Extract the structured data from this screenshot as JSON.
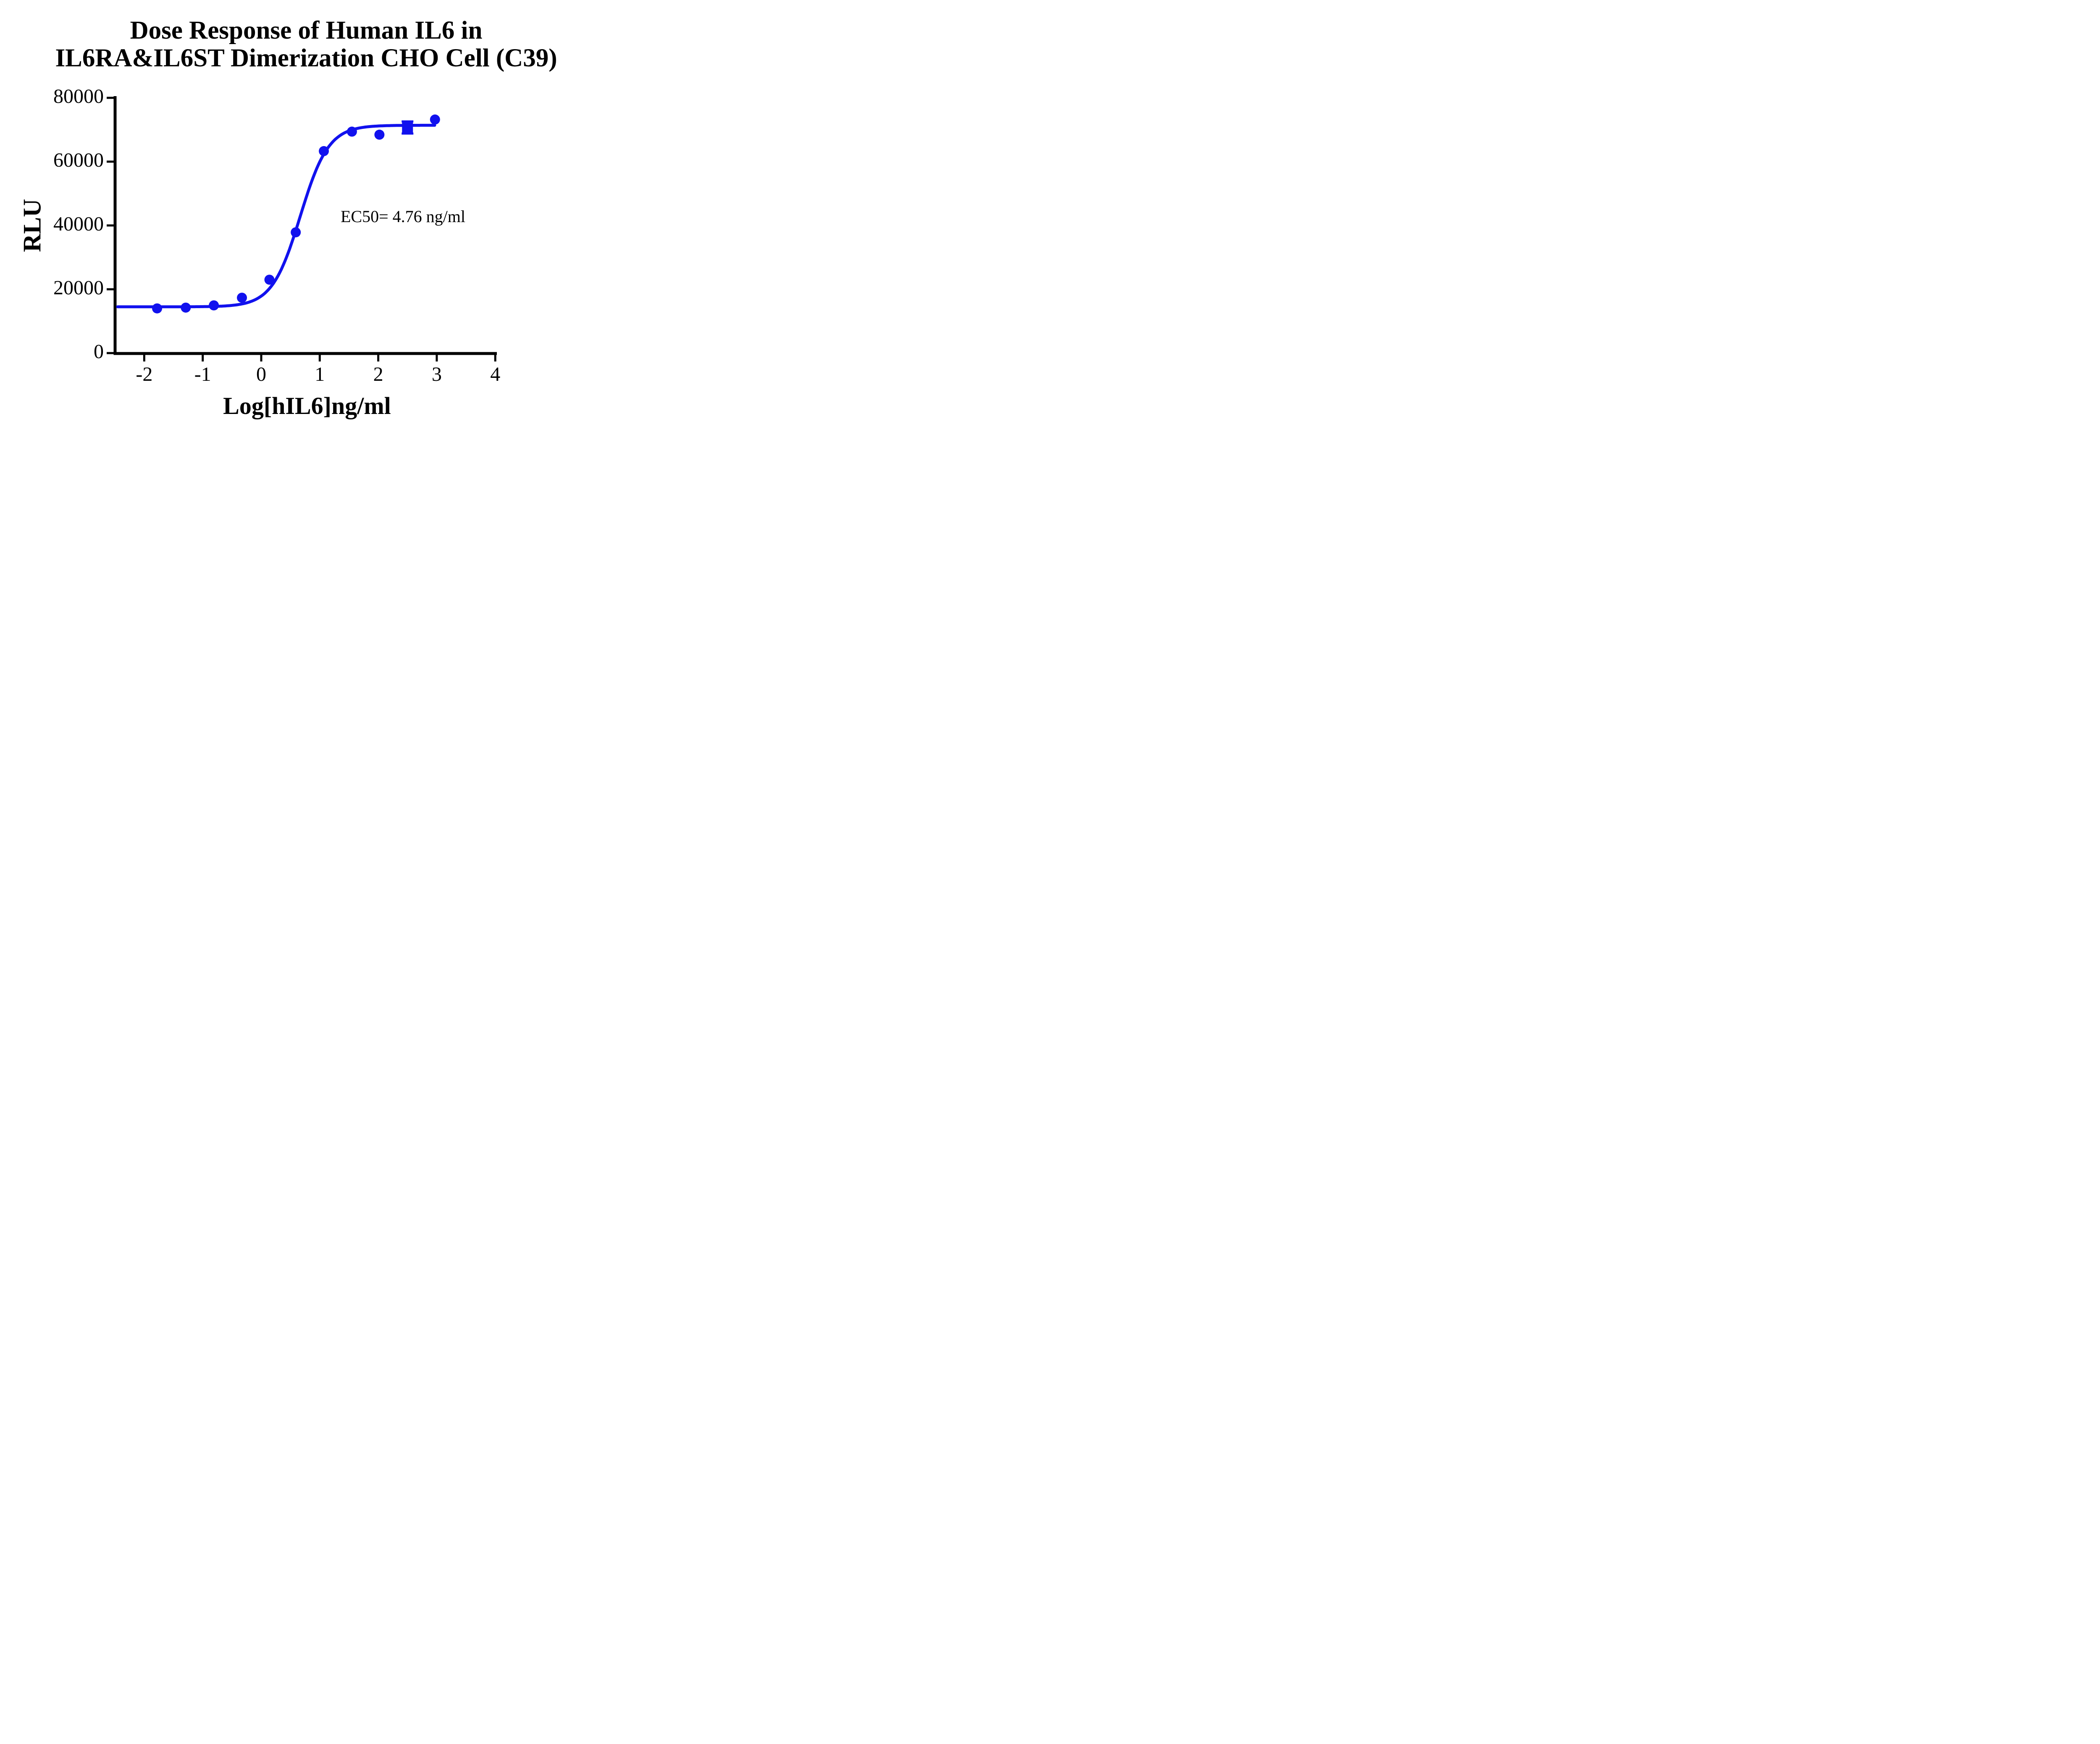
{
  "title": {
    "line1": "Dose Response of Human IL6 in",
    "line2": "IL6RA&IL6ST Dimerization CHO Cell (C39)"
  },
  "annotation": {
    "ec50": "EC50= 4.76 ng/ml"
  },
  "axes": {
    "x": {
      "label": "Log[hIL6]ng/ml",
      "ticks": [
        -2,
        -1,
        0,
        1,
        2,
        3,
        4
      ],
      "range": [
        -2.52,
        4
      ]
    },
    "y": {
      "label": "RLU",
      "ticks": [
        0,
        20000,
        40000,
        60000,
        80000
      ],
      "range": [
        0,
        80000
      ]
    }
  },
  "chart_data": {
    "type": "scatter",
    "series_name": "Human IL6",
    "color": "#1111ee",
    "title": "Dose Response of Human IL6 in IL6RA&IL6ST Dimerization CHO Cell (C39)",
    "xlabel": "Log[hIL6]ng/ml",
    "ylabel": "RLU",
    "xlim": [
      -2.52,
      4
    ],
    "ylim": [
      0,
      80000
    ],
    "grid": false,
    "legend": "none",
    "points": [
      {
        "log_conc": -1.78,
        "rlu": 14000,
        "marker": "circle"
      },
      {
        "log_conc": -1.29,
        "rlu": 14250,
        "marker": "circle"
      },
      {
        "log_conc": -0.81,
        "rlu": 14950,
        "marker": "circle"
      },
      {
        "log_conc": -0.33,
        "rlu": 17350,
        "marker": "circle"
      },
      {
        "log_conc": 0.14,
        "rlu": 23000,
        "marker": "circle"
      },
      {
        "log_conc": 0.59,
        "rlu": 37850,
        "marker": "circle"
      },
      {
        "log_conc": 1.07,
        "rlu": 63300,
        "marker": "circle"
      },
      {
        "log_conc": 1.55,
        "rlu": 69400,
        "marker": "circle"
      },
      {
        "log_conc": 2.02,
        "rlu": 68450,
        "marker": "circle"
      },
      {
        "log_conc": 2.5,
        "rlu": 70700,
        "marker": "square",
        "error_sd": 1900
      },
      {
        "log_conc": 2.97,
        "rlu": 73200,
        "marker": "circle"
      }
    ],
    "fit_curve": {
      "model": "four-parameter logistic",
      "bottom": 14500,
      "top": 71400,
      "log_ec50": 0.668,
      "hill": 1.8,
      "x_start": -2.455,
      "x_end": 2.97
    },
    "ec50_ng_ml": 4.76
  }
}
